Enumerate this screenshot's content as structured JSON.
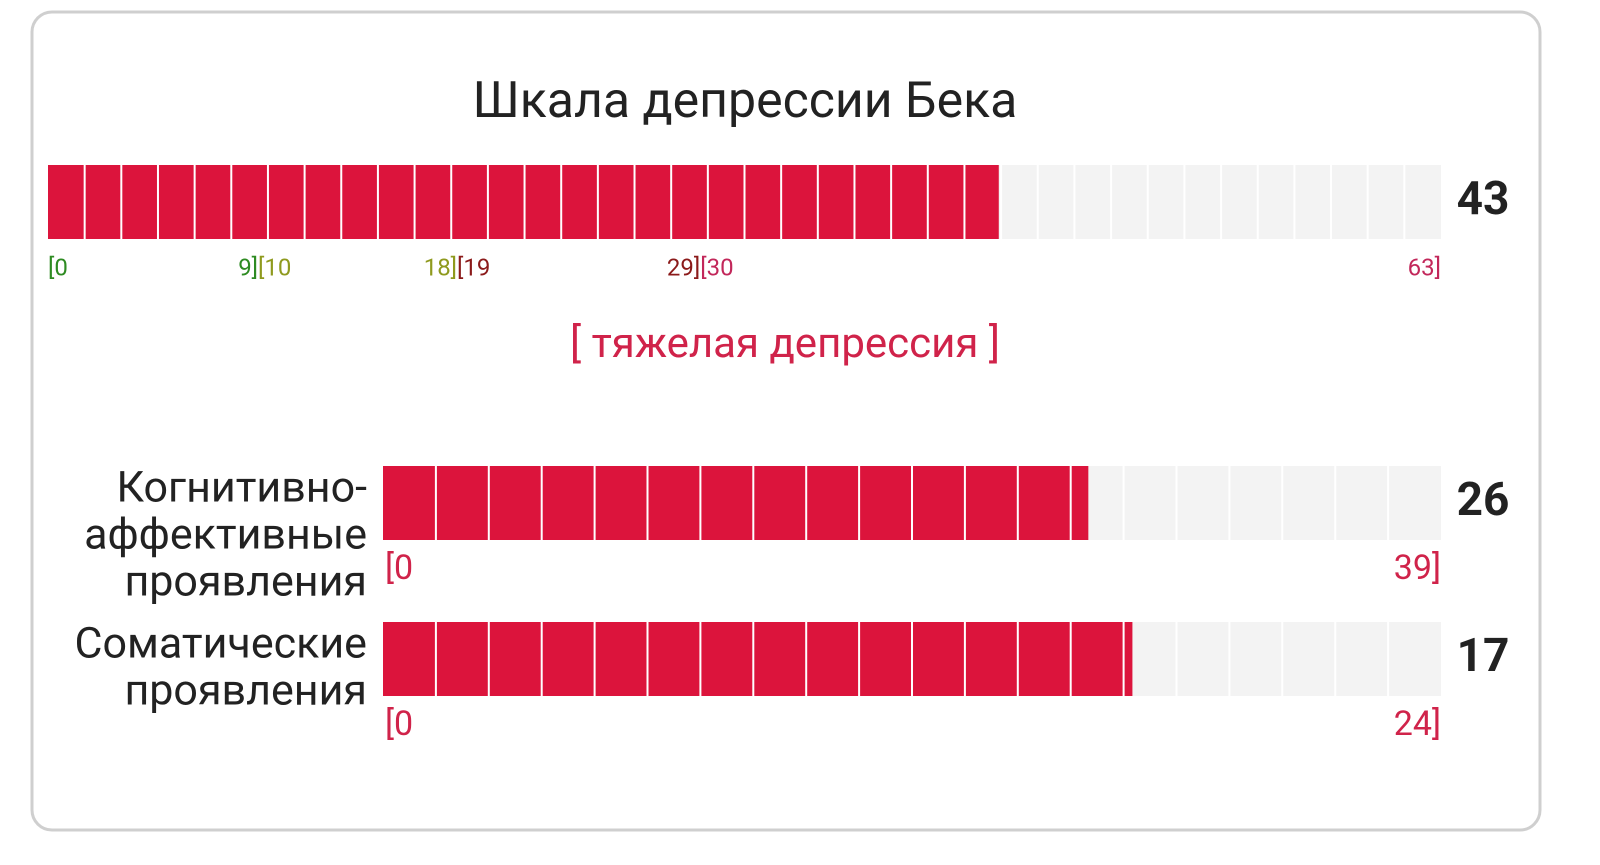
{
  "title": "Шкала депрессии Бека",
  "main_scale": {
    "value": 43,
    "min": 0,
    "max": 63,
    "fill_color": "#dc143c",
    "ranges": [
      {
        "start": {
          "value": 0,
          "label": "[0"
        },
        "end": {
          "value": 9,
          "label": "9]"
        },
        "color": "#2e8b22"
      },
      {
        "start": {
          "value": 10,
          "label": "[10"
        },
        "end": {
          "value": 18,
          "label": "18]"
        },
        "color": "#8f9a1e"
      },
      {
        "start": {
          "value": 19,
          "label": "[19"
        },
        "end": {
          "value": 29,
          "label": "29]"
        },
        "color": "#8b1a1a"
      },
      {
        "start": {
          "value": 30,
          "label": "[30"
        },
        "end": {
          "value": 63,
          "label": "63]"
        },
        "color": "#c2275a"
      }
    ],
    "status": "[ тяжелая депрессия ]",
    "status_color": "#d0234a"
  },
  "subscales": [
    {
      "label_lines": [
        "Когнитивно-",
        "аффективные",
        "проявления"
      ],
      "value": 26,
      "min": {
        "value": 0,
        "label": "[0"
      },
      "max": {
        "value": 39,
        "label": "39]"
      }
    },
    {
      "label_lines": [
        "Соматические",
        "проявления"
      ],
      "value": 17,
      "min": {
        "value": 0,
        "label": "[0"
      },
      "max": {
        "value": 24,
        "label": "24]"
      }
    }
  ]
}
